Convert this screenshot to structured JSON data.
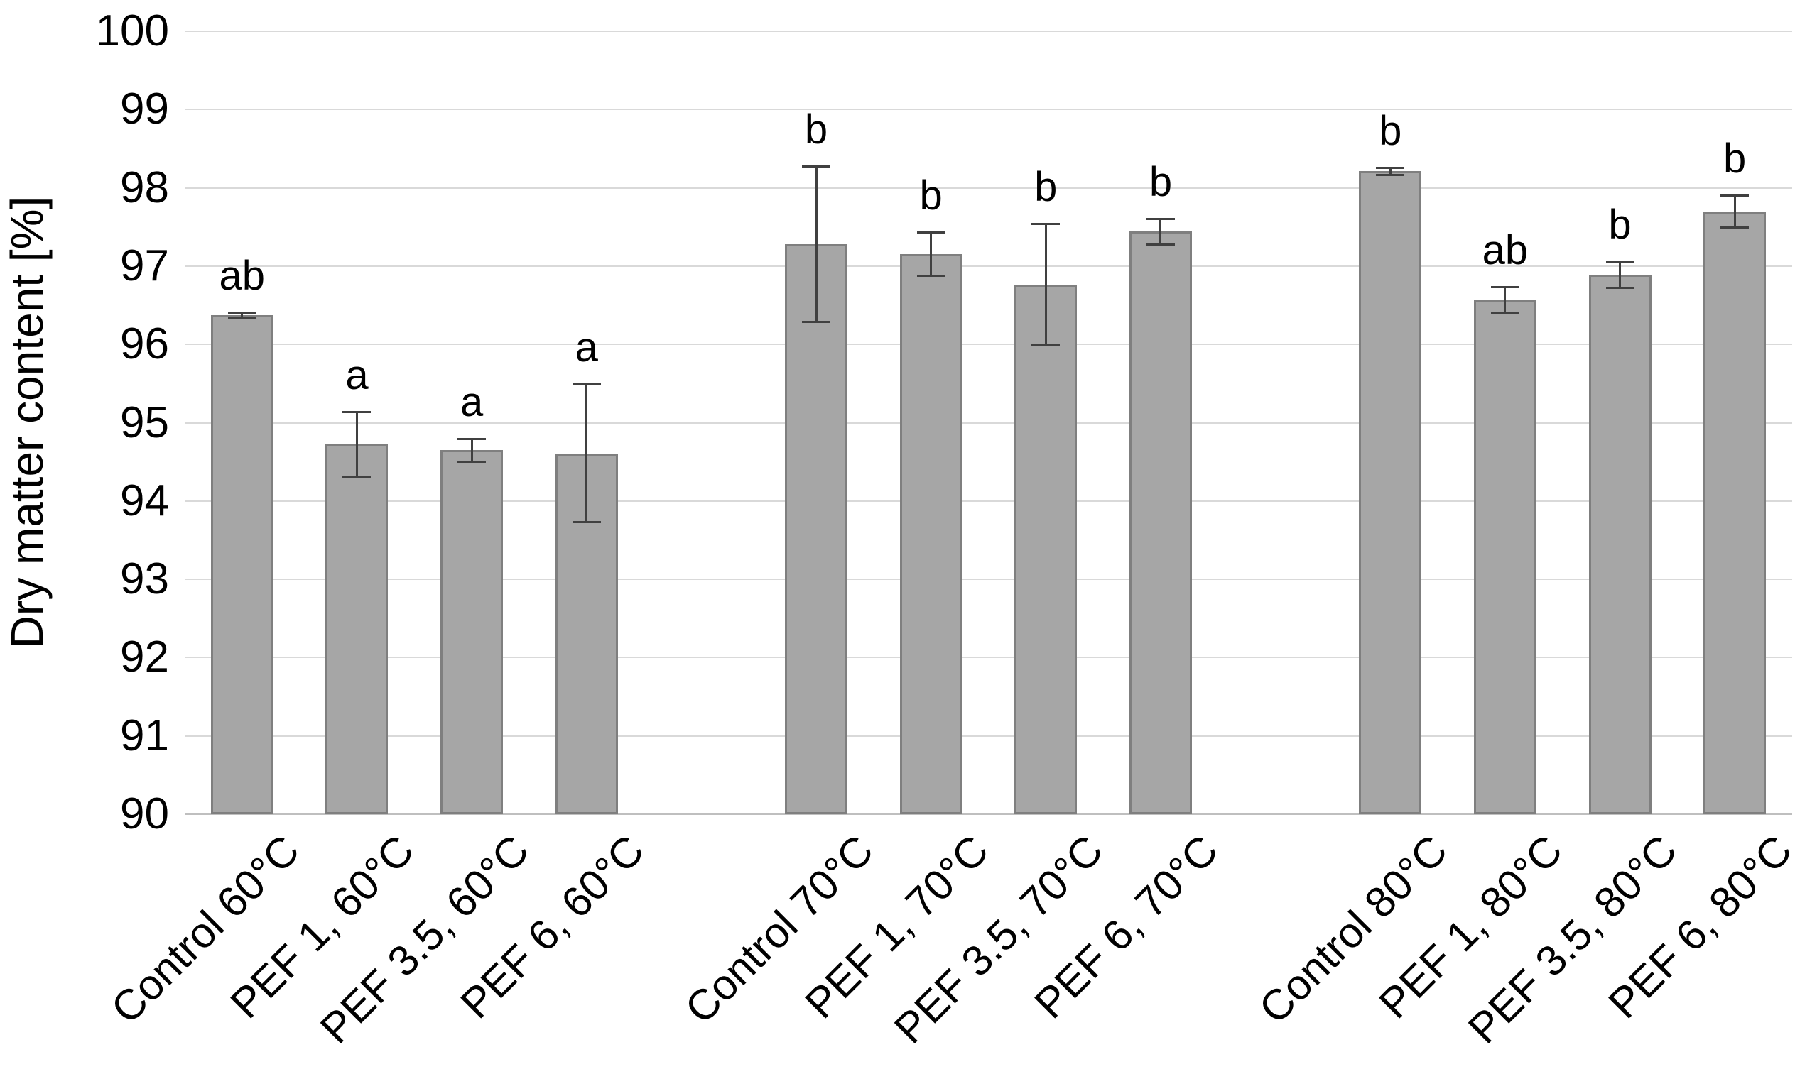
{
  "chart_data": {
    "type": "bar",
    "title": "",
    "xlabel": "",
    "ylabel": "Dry matter content [%]",
    "ylim": [
      90,
      100
    ],
    "yticks": [
      90,
      91,
      92,
      93,
      94,
      95,
      96,
      97,
      98,
      99,
      100
    ],
    "grid": "horizontal",
    "legend": "none",
    "group_size": 4,
    "categories": [
      "Control 60°C",
      "PEF 1, 60°C",
      "PEF 3.5, 60°C",
      "PEF 6, 60°C",
      "Control 70°C",
      "PEF 1, 70°C",
      "PEF 3.5, 70°C",
      "PEF 6, 70°C",
      "Control 80°C",
      "PEF 1, 80°C",
      "PEF 3.5, 80°C",
      "PEF 6, 80°C"
    ],
    "values": [
      96.37,
      94.72,
      94.65,
      94.61,
      97.28,
      97.15,
      96.76,
      97.44,
      98.21,
      96.57,
      96.89,
      97.7
    ],
    "errors": [
      0.04,
      0.42,
      0.15,
      0.88,
      1.0,
      0.28,
      0.78,
      0.17,
      0.05,
      0.17,
      0.17,
      0.21
    ],
    "sig_letters": [
      "ab",
      "a",
      "a",
      "a",
      "b",
      "b",
      "b",
      "b",
      "b",
      "ab",
      "b",
      "b"
    ]
  },
  "colors": {
    "bar_fill": "#a6a6a6",
    "bar_border": "#7f7f7f",
    "gridline": "#d9d9d9",
    "axis_line": "#bfbfbf",
    "error_bar": "#404040",
    "text": "#000000",
    "background": "#ffffff"
  }
}
